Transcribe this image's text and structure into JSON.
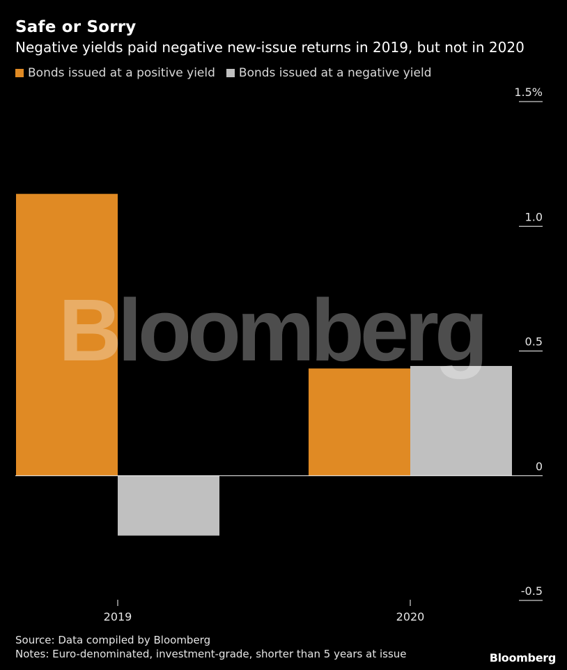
{
  "header": {
    "title": "Safe or Sorry",
    "subtitle": "Negative yields paid negative new-issue returns in 2019, but not in 2020"
  },
  "footer": {
    "source": "Source: Data compiled by Bloomberg",
    "notes": "Notes: Euro-denominated, investment-grade, shorter than 5 years at issue",
    "brand": "Bloomberg"
  },
  "watermark": "Bloomberg",
  "chart_data": {
    "type": "bar",
    "categories": [
      "2019",
      "2020"
    ],
    "series": [
      {
        "name": "Bonds issued at a positive yield",
        "color": "#e08a24",
        "values": [
          1.13,
          0.43
        ]
      },
      {
        "name": "Bonds issued at a negative yield",
        "color": "#c0c0c0",
        "values": [
          -0.24,
          0.44
        ]
      }
    ],
    "ylim": [
      -0.5,
      1.5
    ],
    "yticks": [
      {
        "value": 1.5,
        "label": "1.5%"
      },
      {
        "value": 1.0,
        "label": "1.0"
      },
      {
        "value": 0.5,
        "label": "0.5"
      },
      {
        "value": 0,
        "label": "0"
      },
      {
        "value": -0.5,
        "label": "-0.5"
      }
    ],
    "y_axis_position": "right",
    "legend_position": "top-left",
    "grid": false
  }
}
